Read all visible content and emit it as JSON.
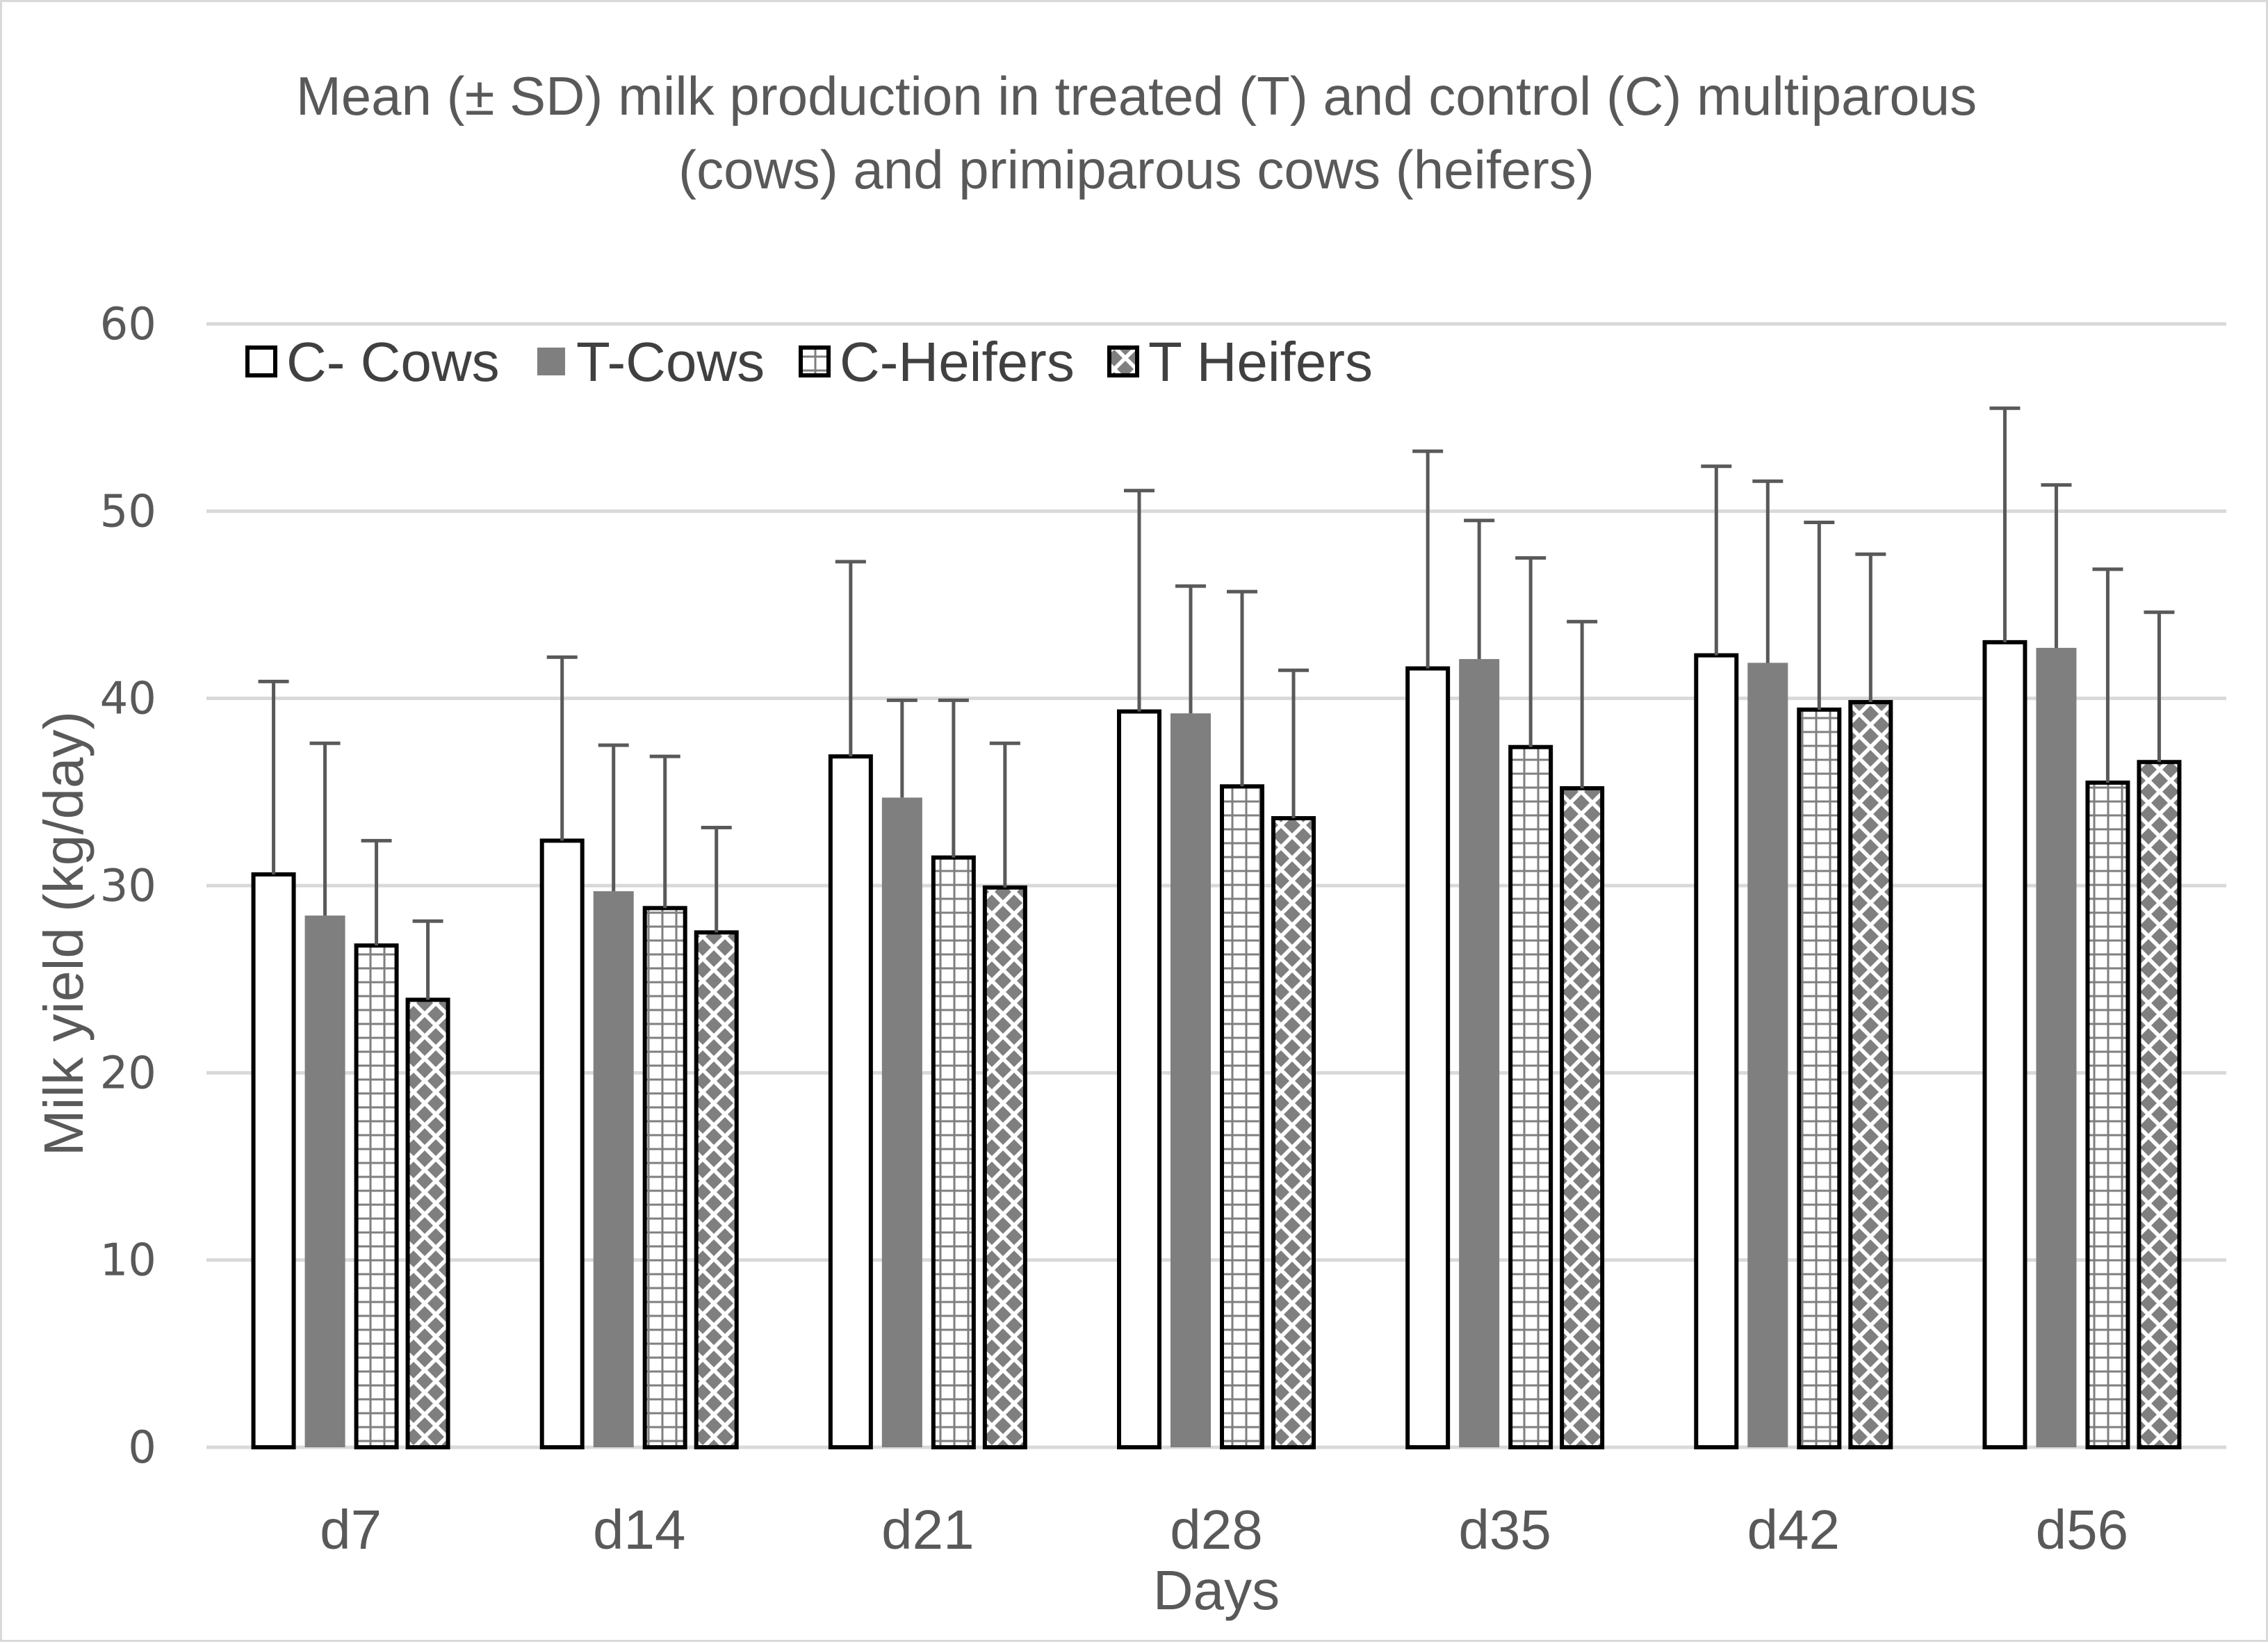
{
  "chart_data": {
    "type": "bar",
    "title_lines": [
      "Mean (± SD) milk production in treated (T) and control (C) multiparous",
      "(cows) and primiparous cows (heifers)"
    ],
    "xlabel": "Days",
    "ylabel": "Milk yield (kg/day)",
    "ylim": [
      0,
      60
    ],
    "yticks": [
      0,
      10,
      20,
      30,
      40,
      50,
      60
    ],
    "grid": true,
    "legend_position": "top-left",
    "categories": [
      "d7",
      "d14",
      "d21",
      "d28",
      "d35",
      "d42",
      "d56"
    ],
    "series": [
      {
        "name": "C- Cows",
        "style": "white",
        "values": [
          30.6,
          32.4,
          36.9,
          39.3,
          41.6,
          42.3,
          43.0
        ],
        "sd": [
          10.3,
          9.8,
          10.4,
          11.8,
          11.6,
          10.1,
          12.5
        ]
      },
      {
        "name": "T-Cows",
        "style": "gray",
        "values": [
          28.4,
          29.7,
          34.7,
          39.2,
          42.1,
          41.9,
          42.7
        ],
        "sd": [
          9.2,
          7.8,
          5.2,
          6.8,
          7.4,
          9.7,
          8.7
        ]
      },
      {
        "name": "C-Heifers",
        "style": "grid",
        "values": [
          26.8,
          28.8,
          31.5,
          35.3,
          37.4,
          39.4,
          35.5
        ],
        "sd": [
          5.6,
          8.1,
          8.4,
          10.4,
          10.1,
          10.0,
          11.4
        ]
      },
      {
        "name": "T Heifers",
        "style": "diamonds",
        "values": [
          23.9,
          27.5,
          29.9,
          33.6,
          35.2,
          39.8,
          36.6
        ],
        "sd": [
          4.2,
          5.6,
          7.7,
          7.9,
          8.9,
          7.9,
          8.0
        ]
      }
    ],
    "colors": {
      "gray_fill": "#7f7f7f",
      "bar_outline": "#000000",
      "error_bar": "#595959",
      "gridline": "#d9d9d9",
      "text": "#595959",
      "legend_text": "#404040",
      "pattern_line": "#7f7f7f"
    }
  }
}
